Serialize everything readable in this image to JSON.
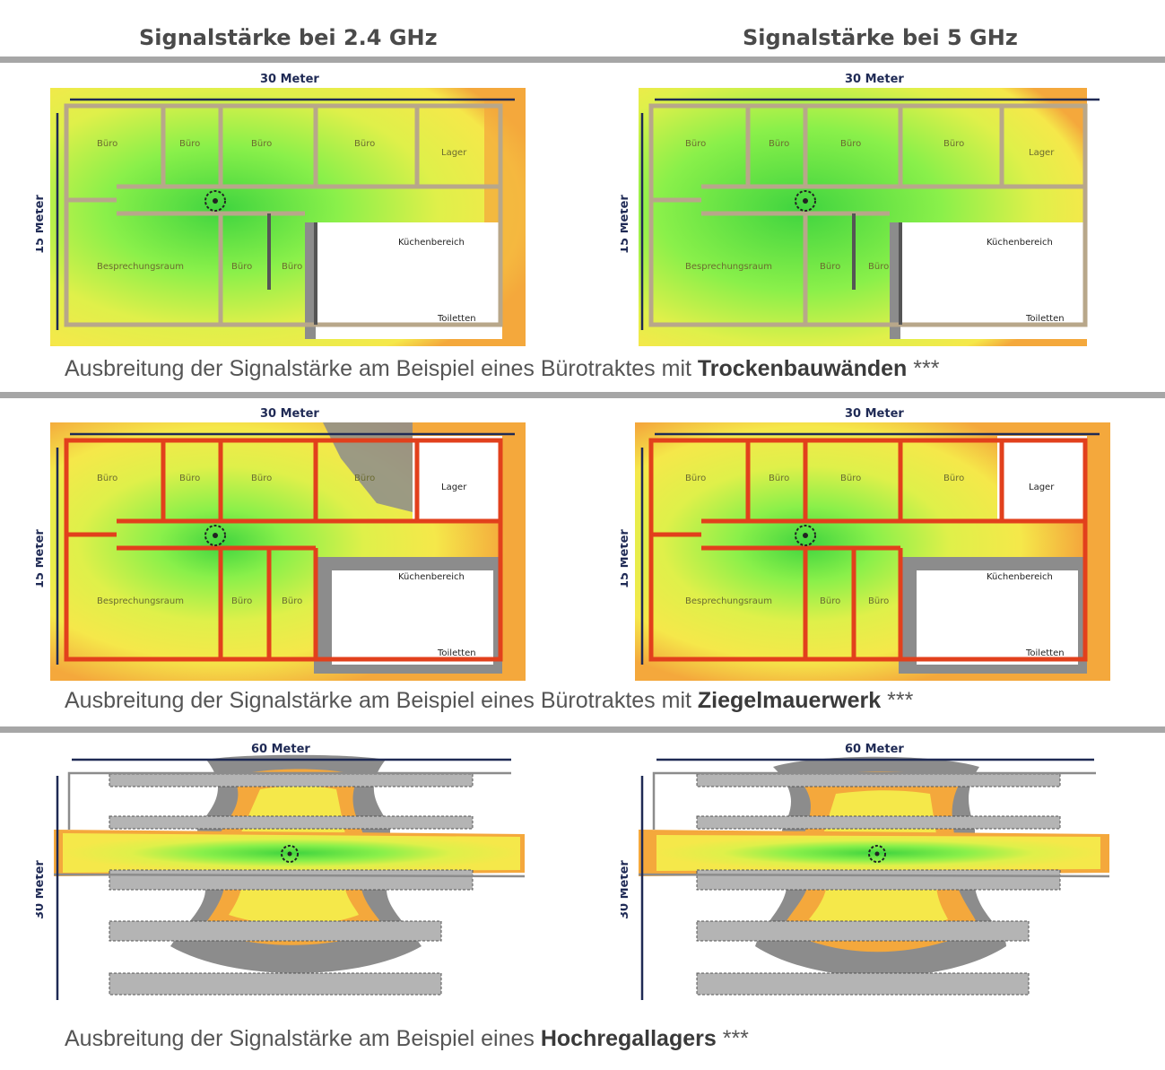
{
  "headers": {
    "left": "Signalstärke bei 2.4 GHz",
    "right": "Signalstärke bei 5 GHz"
  },
  "dims": {
    "w30": "30 Meter",
    "h15": "15 Meter",
    "w60": "60 Meter",
    "h30": "30 Meter"
  },
  "rooms": {
    "buero": "Büro",
    "lager": "Lager",
    "besprechung": "Besprechungsraum",
    "kueche": "Küchenbereich",
    "toiletten": "Toiletten"
  },
  "captions": {
    "row1_prefix": "Ausbreitung der Signalstärke am Beispiel eines Bürotraktes mit ",
    "row1_bold": "Trockenbauwänden",
    "row2_prefix": "Ausbreitung der Signalstärke am Beispiel eines Bürotraktes mit ",
    "row2_bold": "Ziegelmauerwerk",
    "row3_prefix": "Ausbreitung der Signalstärke am Beispiel eines ",
    "row3_bold": "Hochregallagers",
    "suffix": " ***"
  },
  "colors": {
    "strong": "#3fd43f",
    "good": "#8af04a",
    "medium": "#dff04a",
    "weak": "#f5e84a",
    "poor": "#f4a83c",
    "none": "#8c8c8c",
    "drywall": "#b8a78a",
    "brick": "#e2401c",
    "dimension": "#1f2a55"
  }
}
